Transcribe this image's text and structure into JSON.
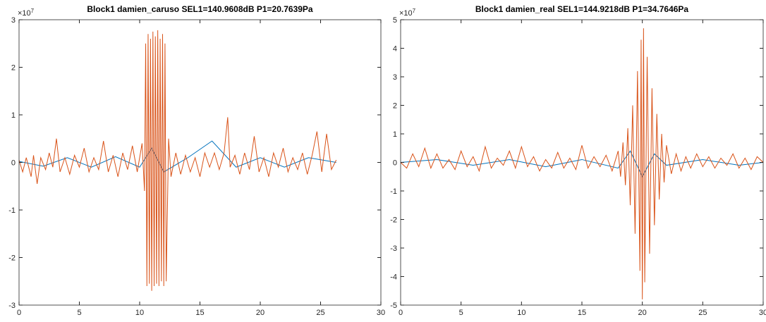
{
  "chart_data": [
    {
      "type": "line",
      "title": "Block1 damien_caruso SEL1=140.9608dB P1=20.7639Pa",
      "y_multiplier_base": "×10",
      "y_multiplier_exponent": 7,
      "xlim": [
        0,
        30
      ],
      "xticks": [
        0,
        5,
        10,
        15,
        20,
        25,
        30
      ],
      "ylim": [
        -3,
        3
      ],
      "yticks": [
        -3,
        -2,
        -1,
        0,
        1,
        2,
        3
      ],
      "series": [
        {
          "color": "#0072bd",
          "x": [
            0,
            2,
            4,
            6,
            8,
            10,
            11,
            12,
            14,
            16,
            18,
            20,
            22,
            24,
            26.3
          ],
          "values": [
            0.02,
            -0.08,
            0.1,
            -0.1,
            0.12,
            -0.1,
            0.3,
            -0.2,
            0.1,
            0.45,
            -0.1,
            0.1,
            -0.1,
            0.1,
            0
          ]
        },
        {
          "color": "#d95319",
          "x": [
            0,
            0.3,
            0.6,
            1,
            1.2,
            1.5,
            1.8,
            2.2,
            2.5,
            2.8,
            3.1,
            3.4,
            3.8,
            4.2,
            4.6,
            5,
            5.4,
            5.8,
            6.2,
            6.6,
            7,
            7.4,
            7.8,
            8.2,
            8.6,
            9,
            9.4,
            9.8,
            10.2,
            10.4,
            10.5,
            10.6,
            10.7,
            10.8,
            10.9,
            11.0,
            11.1,
            11.2,
            11.3,
            11.4,
            11.5,
            11.6,
            11.7,
            11.8,
            11.9,
            12.0,
            12.1,
            12.2,
            12.4,
            12.6,
            13,
            13.4,
            13.8,
            14.2,
            14.6,
            15,
            15.4,
            15.8,
            16.2,
            16.6,
            17,
            17.3,
            17.5,
            17.9,
            18.3,
            18.7,
            19.1,
            19.5,
            19.9,
            20.3,
            20.7,
            21.1,
            21.5,
            21.9,
            22.3,
            22.7,
            23.1,
            23.5,
            23.9,
            24.3,
            24.7,
            25.1,
            25.5,
            25.9,
            26.3
          ],
          "values": [
            0.05,
            -0.2,
            0.1,
            -0.3,
            0.15,
            -0.45,
            0.1,
            -0.15,
            0.2,
            -0.1,
            0.5,
            -0.2,
            0.1,
            -0.25,
            0.15,
            -0.1,
            0.3,
            -0.2,
            0.1,
            -0.15,
            0.45,
            -0.2,
            0.15,
            -0.3,
            0.2,
            -0.15,
            0.35,
            -0.2,
            0.4,
            -0.6,
            2.5,
            -2.6,
            2.7,
            -2.55,
            2.6,
            -2.7,
            2.75,
            -2.6,
            2.65,
            -2.55,
            2.78,
            -2.6,
            2.6,
            -2.5,
            2.7,
            -2.6,
            2.5,
            -2.5,
            0.5,
            -0.3,
            0.2,
            -0.25,
            0.15,
            -0.2,
            0.1,
            -0.3,
            0.2,
            -0.1,
            0.2,
            -0.15,
            0.2,
            0.95,
            -0.1,
            0.15,
            -0.25,
            0.2,
            -0.15,
            0.55,
            -0.2,
            0.1,
            -0.3,
            0.2,
            -0.1,
            0.3,
            -0.2,
            0.1,
            -0.15,
            0.2,
            -0.25,
            0.15,
            0.65,
            -0.2,
            0.6,
            -0.15,
            0.05
          ]
        }
      ]
    },
    {
      "type": "line",
      "title": "Block1 damien_real SEL1=144.9218dB P1=34.7646Pa",
      "y_multiplier_base": "×10",
      "y_multiplier_exponent": 7,
      "xlim": [
        0,
        30
      ],
      "xticks": [
        0,
        5,
        10,
        15,
        20,
        25,
        30
      ],
      "ylim": [
        -5,
        5
      ],
      "yticks": [
        -5,
        -4,
        -3,
        -2,
        -1,
        0,
        1,
        2,
        3,
        4,
        5
      ],
      "series": [
        {
          "color": "#0072bd",
          "x": [
            0,
            3,
            6,
            9,
            12,
            15,
            18,
            19,
            20,
            21,
            22,
            25,
            28,
            30
          ],
          "values": [
            0,
            0.1,
            -0.1,
            0.1,
            -0.15,
            0.1,
            -0.2,
            0.4,
            -0.5,
            0.3,
            -0.1,
            0.1,
            -0.1,
            0
          ]
        },
        {
          "color": "#d95319",
          "x": [
            0,
            0.5,
            1,
            1.5,
            2,
            2.5,
            3,
            3.5,
            4,
            4.5,
            5,
            5.5,
            6,
            6.5,
            7,
            7.5,
            8,
            8.5,
            9,
            9.5,
            10,
            10.5,
            11,
            11.5,
            12,
            12.5,
            13,
            13.5,
            14,
            14.5,
            15,
            15.5,
            16,
            16.5,
            17,
            17.5,
            18,
            18.2,
            18.4,
            18.6,
            18.8,
            19,
            19.2,
            19.4,
            19.6,
            19.8,
            19.9,
            20,
            20.1,
            20.2,
            20.4,
            20.6,
            20.8,
            21,
            21.2,
            21.4,
            21.6,
            21.8,
            22,
            22.4,
            22.8,
            23.2,
            23.6,
            24,
            24.5,
            25,
            25.5,
            26,
            26.5,
            27,
            27.5,
            28,
            28.5,
            29,
            29.5,
            30
          ],
          "values": [
            0,
            -0.2,
            0.3,
            -0.15,
            0.5,
            -0.2,
            0.3,
            -0.2,
            0.1,
            -0.25,
            0.4,
            -0.15,
            0.2,
            -0.3,
            0.55,
            -0.2,
            0.15,
            -0.1,
            0.4,
            -0.2,
            0.55,
            -0.15,
            0.2,
            -0.3,
            0.1,
            -0.2,
            0.35,
            -0.2,
            0.15,
            -0.25,
            0.6,
            -0.2,
            0.2,
            -0.15,
            0.25,
            -0.3,
            0.4,
            -0.5,
            0.7,
            -0.8,
            1.2,
            -1.5,
            2.0,
            -2.5,
            3.2,
            -3.8,
            4.3,
            -4.8,
            4.7,
            -4.2,
            3.7,
            -3.2,
            2.6,
            -2.2,
            1.7,
            -1.3,
            1.0,
            -0.7,
            0.6,
            -0.4,
            0.3,
            -0.3,
            0.2,
            -0.2,
            0.3,
            -0.15,
            0.2,
            -0.2,
            0.15,
            -0.1,
            0.3,
            -0.2,
            0.15,
            -0.25,
            0.2,
            0
          ]
        }
      ]
    }
  ]
}
